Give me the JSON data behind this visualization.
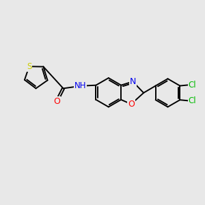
{
  "background_color": "#e8e8e8",
  "bond_color": "#000000",
  "atom_colors": {
    "S": "#cccc00",
    "N": "#0000ee",
    "O": "#ff0000",
    "Cl": "#00bb00",
    "C": "#000000",
    "H": "#000000"
  },
  "figsize": [
    3.0,
    3.0
  ],
  "dpi": 100,
  "xlim": [
    0,
    10
  ],
  "ylim": [
    0,
    10
  ]
}
